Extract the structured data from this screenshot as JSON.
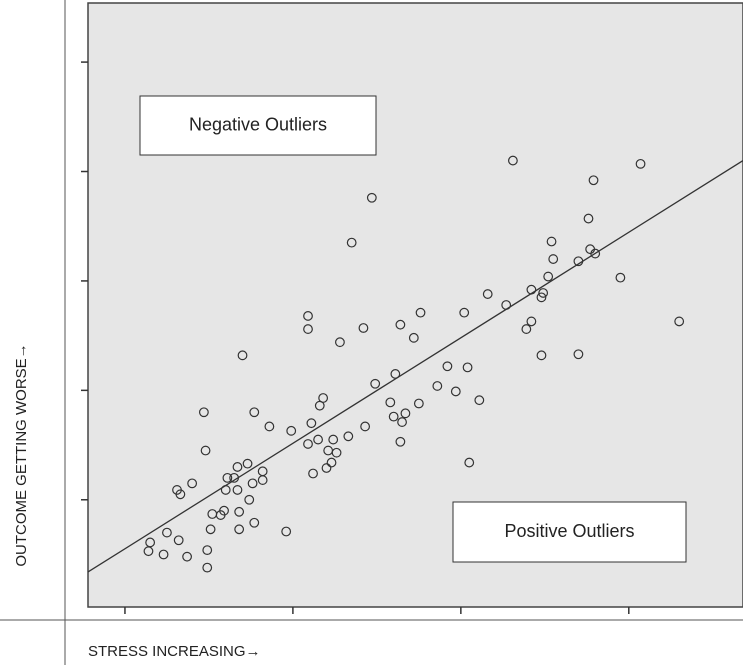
{
  "chart_data": {
    "type": "scatter",
    "x_label": "STRESS INCREASING→",
    "y_label": "OUTCOME GETTING WORSE→",
    "annotations": [
      "Negative Outliers",
      "Positive Outliers"
    ],
    "color": "#333333",
    "background": "#e6e6e6",
    "xlim": [
      0.78,
      4.68
    ],
    "ylim": [
      0.02,
      5.54
    ],
    "xticks": [
      1,
      2,
      3,
      4
    ],
    "yticks": [
      1,
      2,
      3,
      4,
      5
    ],
    "trend_line": {
      "x": [
        0.78,
        4.68
      ],
      "y": [
        0.34,
        4.1
      ]
    },
    "x": [
      1.14,
      1.15,
      1.23,
      1.25,
      1.32,
      1.37,
      1.31,
      1.33,
      1.4,
      1.47,
      1.48,
      1.49,
      1.49,
      1.51,
      1.52,
      1.57,
      1.59,
      1.6,
      1.61,
      1.65,
      1.67,
      1.67,
      1.68,
      1.68,
      1.7,
      1.73,
      1.74,
      1.77,
      1.76,
      1.77,
      1.82,
      1.82,
      1.86,
      1.96,
      1.99,
      2.09,
      2.09,
      2.09,
      2.11,
      2.12,
      2.15,
      2.16,
      2.18,
      2.2,
      2.21,
      2.23,
      2.24,
      2.26,
      2.28,
      2.33,
      2.35,
      2.42,
      2.43,
      2.47,
      2.49,
      2.58,
      2.6,
      2.61,
      2.64,
      2.64,
      2.65,
      2.67,
      2.72,
      2.75,
      2.76,
      2.86,
      2.92,
      2.97,
      3.02,
      3.04,
      3.05,
      3.11,
      3.16,
      3.27,
      3.31,
      3.39,
      3.42,
      3.42,
      3.48,
      3.48,
      3.49,
      3.52,
      3.54,
      3.55,
      3.7,
      3.7,
      3.76,
      3.77,
      3.79,
      3.8,
      3.95,
      4.07,
      4.3
    ],
    "y": [
      0.53,
      0.61,
      0.5,
      0.7,
      0.63,
      0.48,
      1.09,
      1.05,
      1.15,
      1.8,
      1.45,
      0.54,
      0.38,
      0.73,
      0.87,
      0.86,
      0.9,
      1.09,
      1.2,
      1.2,
      1.09,
      1.3,
      0.89,
      0.73,
      2.32,
      1.33,
      1.0,
      1.8,
      1.15,
      0.79,
      1.26,
      1.18,
      1.67,
      0.71,
      1.63,
      2.68,
      2.56,
      1.51,
      1.7,
      1.24,
      1.55,
      1.86,
      1.93,
      1.29,
      1.45,
      1.34,
      1.55,
      1.43,
      2.44,
      1.58,
      3.35,
      2.57,
      1.67,
      3.76,
      2.06,
      1.89,
      1.76,
      2.15,
      2.6,
      1.53,
      1.71,
      1.79,
      2.48,
      1.88,
      2.71,
      2.04,
      2.22,
      1.99,
      2.71,
      2.21,
      1.34,
      1.91,
      2.88,
      2.78,
      4.1,
      2.56,
      2.63,
      2.92,
      2.32,
      2.85,
      2.89,
      3.04,
      3.36,
      3.2,
      3.18,
      2.33,
      3.57,
      3.29,
      3.92,
      3.25,
      3.03,
      4.07,
      2.63
    ]
  }
}
